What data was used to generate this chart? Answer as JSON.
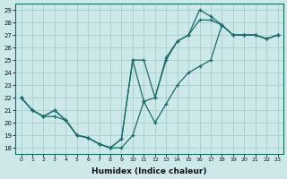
{
  "xlabel": "Humidex (Indice chaleur)",
  "bg_color": "#cce8e8",
  "grid_color": "#aacccc",
  "line_color": "#1a6b6b",
  "xlim": [
    -0.5,
    23.5
  ],
  "ylim": [
    17.5,
    29.5
  ],
  "yticks": [
    18,
    19,
    20,
    21,
    22,
    23,
    24,
    25,
    26,
    27,
    28,
    29
  ],
  "xticks": [
    0,
    1,
    2,
    3,
    4,
    5,
    6,
    7,
    8,
    9,
    10,
    11,
    12,
    13,
    14,
    15,
    16,
    17,
    18,
    19,
    20,
    21,
    22,
    23
  ],
  "line1_x": [
    0,
    1,
    2,
    3,
    4,
    5,
    6,
    7,
    8,
    9,
    10,
    11,
    12,
    13,
    14,
    15,
    16,
    17,
    18,
    19,
    20,
    21,
    22,
    23
  ],
  "line1_y": [
    22,
    21,
    20.5,
    20.5,
    20.2,
    19,
    18.8,
    18.3,
    18,
    18,
    19,
    21.7,
    20,
    21.5,
    23,
    24,
    24.5,
    25,
    27.8,
    27,
    27,
    27,
    26.7,
    27
  ],
  "line2_x": [
    0,
    1,
    2,
    3,
    4,
    5,
    6,
    7,
    8,
    9,
    10,
    11,
    12,
    13,
    14,
    15,
    16,
    17,
    18,
    19,
    20,
    21,
    22,
    23
  ],
  "line2_y": [
    22,
    21,
    20.5,
    21,
    20.2,
    19,
    18.8,
    18.3,
    18,
    18.7,
    25,
    25,
    22,
    25,
    26.5,
    27,
    28.2,
    28.2,
    27.8,
    27,
    27,
    27,
    26.7,
    27
  ],
  "line3_x": [
    0,
    1,
    2,
    3,
    4,
    5,
    6,
    7,
    8,
    9,
    10,
    11,
    12,
    13,
    14,
    15,
    16,
    17,
    18,
    19,
    20,
    21,
    22,
    23
  ],
  "line3_y": [
    22,
    21,
    20.5,
    21,
    20.2,
    19,
    18.8,
    18.3,
    18,
    18.7,
    25,
    21.7,
    22,
    25.2,
    26.5,
    27,
    29,
    28.5,
    27.8,
    27,
    27,
    27,
    26.7,
    27
  ]
}
